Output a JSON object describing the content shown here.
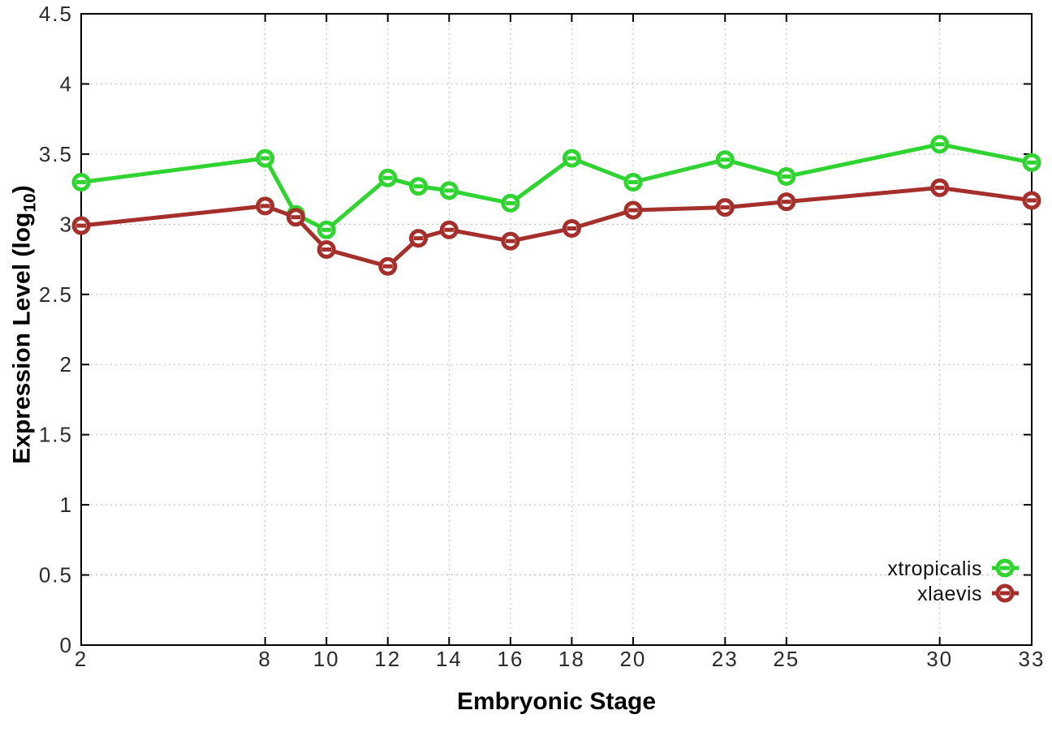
{
  "chart_data": {
    "type": "line",
    "title": "",
    "xlabel": "Embryonic Stage",
    "ylabel": "Expression Level (log10)",
    "ylabel_parts": {
      "pre": "Expression Level (log",
      "sub": "10",
      "post": ")"
    },
    "x_values": [
      2,
      8,
      9,
      10,
      12,
      13,
      14,
      16,
      18,
      20,
      23,
      25,
      30,
      33
    ],
    "series": [
      {
        "name": "xtropicalis",
        "color": "#30d430",
        "values": [
          3.3,
          3.47,
          3.07,
          2.96,
          3.33,
          3.27,
          3.24,
          3.15,
          3.47,
          3.3,
          3.46,
          3.34,
          3.57,
          3.44
        ]
      },
      {
        "name": "xlaevis",
        "color": "#a52f2a",
        "values": [
          2.99,
          3.13,
          3.05,
          2.82,
          2.7,
          2.9,
          2.96,
          2.88,
          2.97,
          3.1,
          3.12,
          3.16,
          3.26,
          3.17
        ]
      }
    ],
    "xticks": [
      2,
      8,
      10,
      12,
      14,
      16,
      18,
      20,
      23,
      25,
      30,
      33
    ],
    "yticks": [
      0,
      0.5,
      1,
      1.5,
      2,
      2.5,
      3,
      3.5,
      4,
      4.5
    ],
    "xlim": [
      2,
      33
    ],
    "ylim": [
      0,
      4.5
    ],
    "grid": true,
    "grid_style": "dotted",
    "legend_position": "bottom-right",
    "colors": {
      "axis": "#000000",
      "grid": "#bdbdbd",
      "tick_text": "#2b2b2b"
    }
  }
}
